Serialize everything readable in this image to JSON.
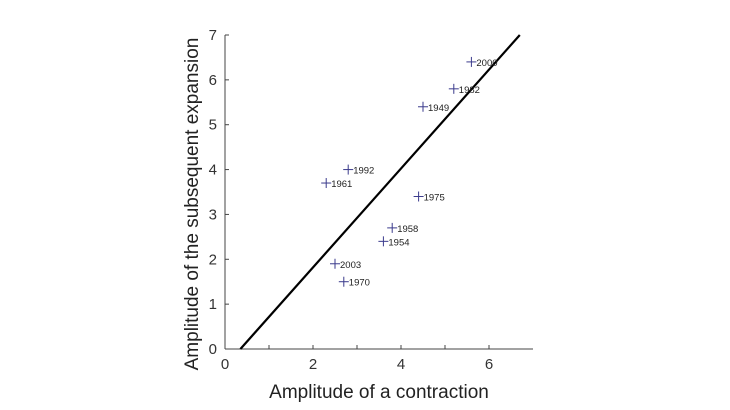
{
  "chart_data": {
    "type": "scatter",
    "title": "",
    "xlabel": "Amplitude of a contraction",
    "ylabel": "Amplitude of the subsequent expansion",
    "xlim": [
      0,
      7
    ],
    "ylim": [
      0,
      7
    ],
    "xticks": [
      "0",
      "2",
      "4",
      "6"
    ],
    "yticks": [
      "0",
      "1",
      "2",
      "3",
      "4",
      "5",
      "6",
      "7"
    ],
    "grid": false,
    "marker": "plus",
    "marker_color": "#3a3a8c",
    "points": [
      {
        "label": "2000",
        "x": 5.6,
        "y": 6.4
      },
      {
        "label": "1982",
        "x": 5.2,
        "y": 5.8
      },
      {
        "label": "1949",
        "x": 4.5,
        "y": 5.4
      },
      {
        "label": "1992",
        "x": 2.8,
        "y": 4.0
      },
      {
        "label": "1961",
        "x": 2.3,
        "y": 3.7
      },
      {
        "label": "1975",
        "x": 4.4,
        "y": 3.4
      },
      {
        "label": "1958",
        "x": 3.8,
        "y": 2.7
      },
      {
        "label": "1954",
        "x": 3.6,
        "y": 2.4
      },
      {
        "label": "2003",
        "x": 2.5,
        "y": 1.9
      },
      {
        "label": "1970",
        "x": 2.7,
        "y": 1.5
      }
    ],
    "fit_line": {
      "x": [
        0.35,
        6.7
      ],
      "y": [
        0,
        7.0
      ]
    }
  }
}
